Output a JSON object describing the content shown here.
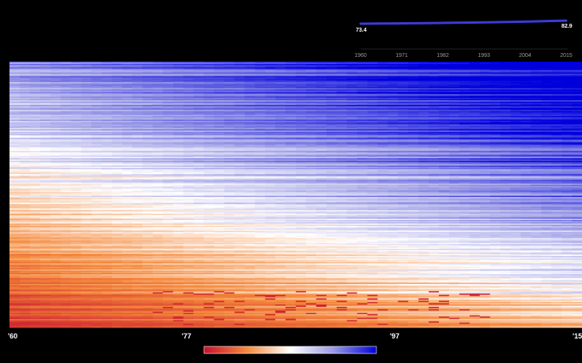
{
  "chart_data": [
    {
      "type": "line",
      "role": "sparkline",
      "x": [
        1960,
        1965,
        1970,
        1975,
        1980,
        1985,
        1990,
        1995,
        2000,
        2005,
        2010,
        2015
      ],
      "series": [
        {
          "values": [
            73.4,
            73.9,
            74.4,
            75.0,
            75.7,
            76.4,
            77.2,
            78.0,
            79.0,
            80.2,
            81.6,
            82.9
          ]
        }
      ],
      "x_ticks": [
        1960,
        1971,
        1982,
        1993,
        2004,
        2015
      ],
      "start_label": "73.4",
      "end_label": "82.9",
      "xlim": [
        1960,
        2015
      ],
      "color": "#3b3bd6",
      "grid": false
    },
    {
      "type": "heatmap",
      "x_tick_labels": [
        "'60",
        "'77",
        "'97",
        "'15"
      ],
      "x_tick_years": [
        1960,
        1977,
        1997,
        2015
      ],
      "xlim": [
        1960,
        2015
      ],
      "rows": 220,
      "colorscale": [
        "#c8102e",
        "#f58a3c",
        "#ffffff",
        "#9a9ae6",
        "#0000dd"
      ],
      "note_rows": "rows sorted by start value; upper rows high (blue), lower rows low (red/orange), all trending toward blue over time"
    }
  ],
  "colors": {
    "background": "#000000",
    "line": "#3b3bd6",
    "low": "#c8102e",
    "mid": "#ffffff",
    "high": "#0000dd"
  }
}
